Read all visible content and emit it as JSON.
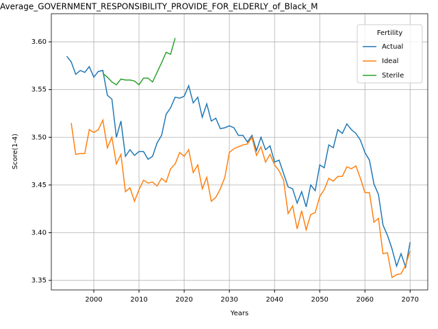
{
  "chart_data": {
    "type": "line",
    "title": "Average_GOVERNMENT_RESPONSIBILITY_PROVIDE_FOR_ELDERLY_of_Black_M",
    "x_label": "Years",
    "y_label": "Score(1-4)",
    "x": [
      1994,
      1995,
      1996,
      1997,
      1998,
      1999,
      2000,
      2001,
      2002,
      2003,
      2004,
      2005,
      2006,
      2007,
      2008,
      2009,
      2010,
      2011,
      2012,
      2013,
      2014,
      2015,
      2016,
      2017,
      2018,
      2019,
      2020,
      2021,
      2022,
      2023,
      2024,
      2025,
      2026,
      2027,
      2028,
      2029,
      2030,
      2031,
      2032,
      2033,
      2034,
      2035,
      2036,
      2037,
      2038,
      2039,
      2040,
      2041,
      2042,
      2043,
      2044,
      2045,
      2046,
      2047,
      2048,
      2049,
      2050,
      2051,
      2052,
      2053,
      2054,
      2055,
      2056,
      2057,
      2058,
      2059,
      2060,
      2061,
      2062,
      2063,
      2064,
      2065,
      2066,
      2067,
      2068,
      2069,
      2070
    ],
    "series": [
      {
        "name": "Actual",
        "color": "#1f77b4",
        "values": [
          3.585,
          3.579,
          3.566,
          3.57,
          3.568,
          3.574,
          3.563,
          3.569,
          3.57,
          3.544,
          3.54,
          3.5,
          3.517,
          3.48,
          3.487,
          3.481,
          3.485,
          3.485,
          3.477,
          3.48,
          3.494,
          3.502,
          3.524,
          3.531,
          3.542,
          3.541,
          3.543,
          3.554,
          3.536,
          3.542,
          3.521,
          3.535,
          3.517,
          3.52,
          3.509,
          3.51,
          3.512,
          3.51,
          3.502,
          3.502,
          3.495,
          3.502,
          3.486,
          3.5,
          3.487,
          3.491,
          3.474,
          3.476,
          3.462,
          3.448,
          3.446,
          3.431,
          3.443,
          3.427,
          3.45,
          3.444,
          3.471,
          3.468,
          3.492,
          3.489,
          3.508,
          3.504,
          3.514,
          3.508,
          3.504,
          3.497,
          3.484,
          3.476,
          3.451,
          3.44,
          3.408,
          3.397,
          3.383,
          3.365,
          3.378,
          3.364,
          3.39
        ]
      },
      {
        "name": "Ideal",
        "color": "#ff7f0e",
        "values": [
          null,
          3.515,
          3.482,
          3.483,
          3.483,
          3.508,
          3.505,
          3.508,
          3.518,
          3.489,
          3.5,
          3.472,
          3.482,
          3.443,
          3.447,
          3.433,
          3.445,
          3.455,
          3.452,
          3.453,
          3.449,
          3.457,
          3.453,
          3.467,
          3.472,
          3.484,
          3.48,
          3.487,
          3.463,
          3.471,
          3.446,
          3.458,
          3.433,
          3.437,
          3.446,
          3.458,
          3.484,
          3.488,
          3.49,
          3.492,
          3.493,
          3.5,
          3.481,
          3.49,
          3.474,
          3.482,
          3.471,
          3.465,
          3.455,
          3.42,
          3.428,
          3.404,
          3.423,
          3.403,
          3.419,
          3.421,
          3.438,
          3.445,
          3.457,
          3.454,
          3.459,
          3.459,
          3.469,
          3.467,
          3.47,
          3.457,
          3.442,
          3.442,
          3.411,
          3.415,
          3.378,
          3.379,
          3.353,
          3.356,
          3.357,
          3.366,
          3.381
        ]
      },
      {
        "name": "Sterile",
        "color": "#2ca02c",
        "values": [
          null,
          null,
          null,
          null,
          null,
          null,
          null,
          null,
          3.567,
          3.563,
          3.558,
          3.555,
          3.561,
          3.56,
          3.56,
          3.559,
          3.555,
          3.562,
          3.562,
          3.558,
          3.568,
          3.578,
          3.589,
          3.587,
          3.604,
          null,
          null,
          null,
          null,
          null,
          null,
          null,
          null,
          null,
          null,
          null,
          null,
          null,
          null,
          null,
          null,
          null,
          null,
          null,
          null,
          null,
          null,
          null,
          null,
          null,
          null,
          null,
          null,
          null,
          null,
          null,
          null,
          null,
          null,
          null,
          null,
          null,
          null,
          null,
          null,
          null,
          null,
          null,
          null,
          null,
          null,
          null,
          null,
          null,
          null,
          null,
          null
        ]
      }
    ],
    "legend_title": "Fertility",
    "legend": "upper right",
    "xlim": [
      1990.6,
      2073.9
    ],
    "xticks": [
      2000,
      2010,
      2020,
      2030,
      2040,
      2050,
      2060,
      2070
    ],
    "ylim": [
      3.34,
      3.6295
    ],
    "yticks": [
      3.35,
      {
        "value": 3.4,
        "label": "3.40"
      },
      3.45,
      {
        "value": 3.5,
        "label": "3.50"
      },
      3.55,
      {
        "value": 3.6,
        "label": "3.60"
      }
    ],
    "grid": true
  }
}
